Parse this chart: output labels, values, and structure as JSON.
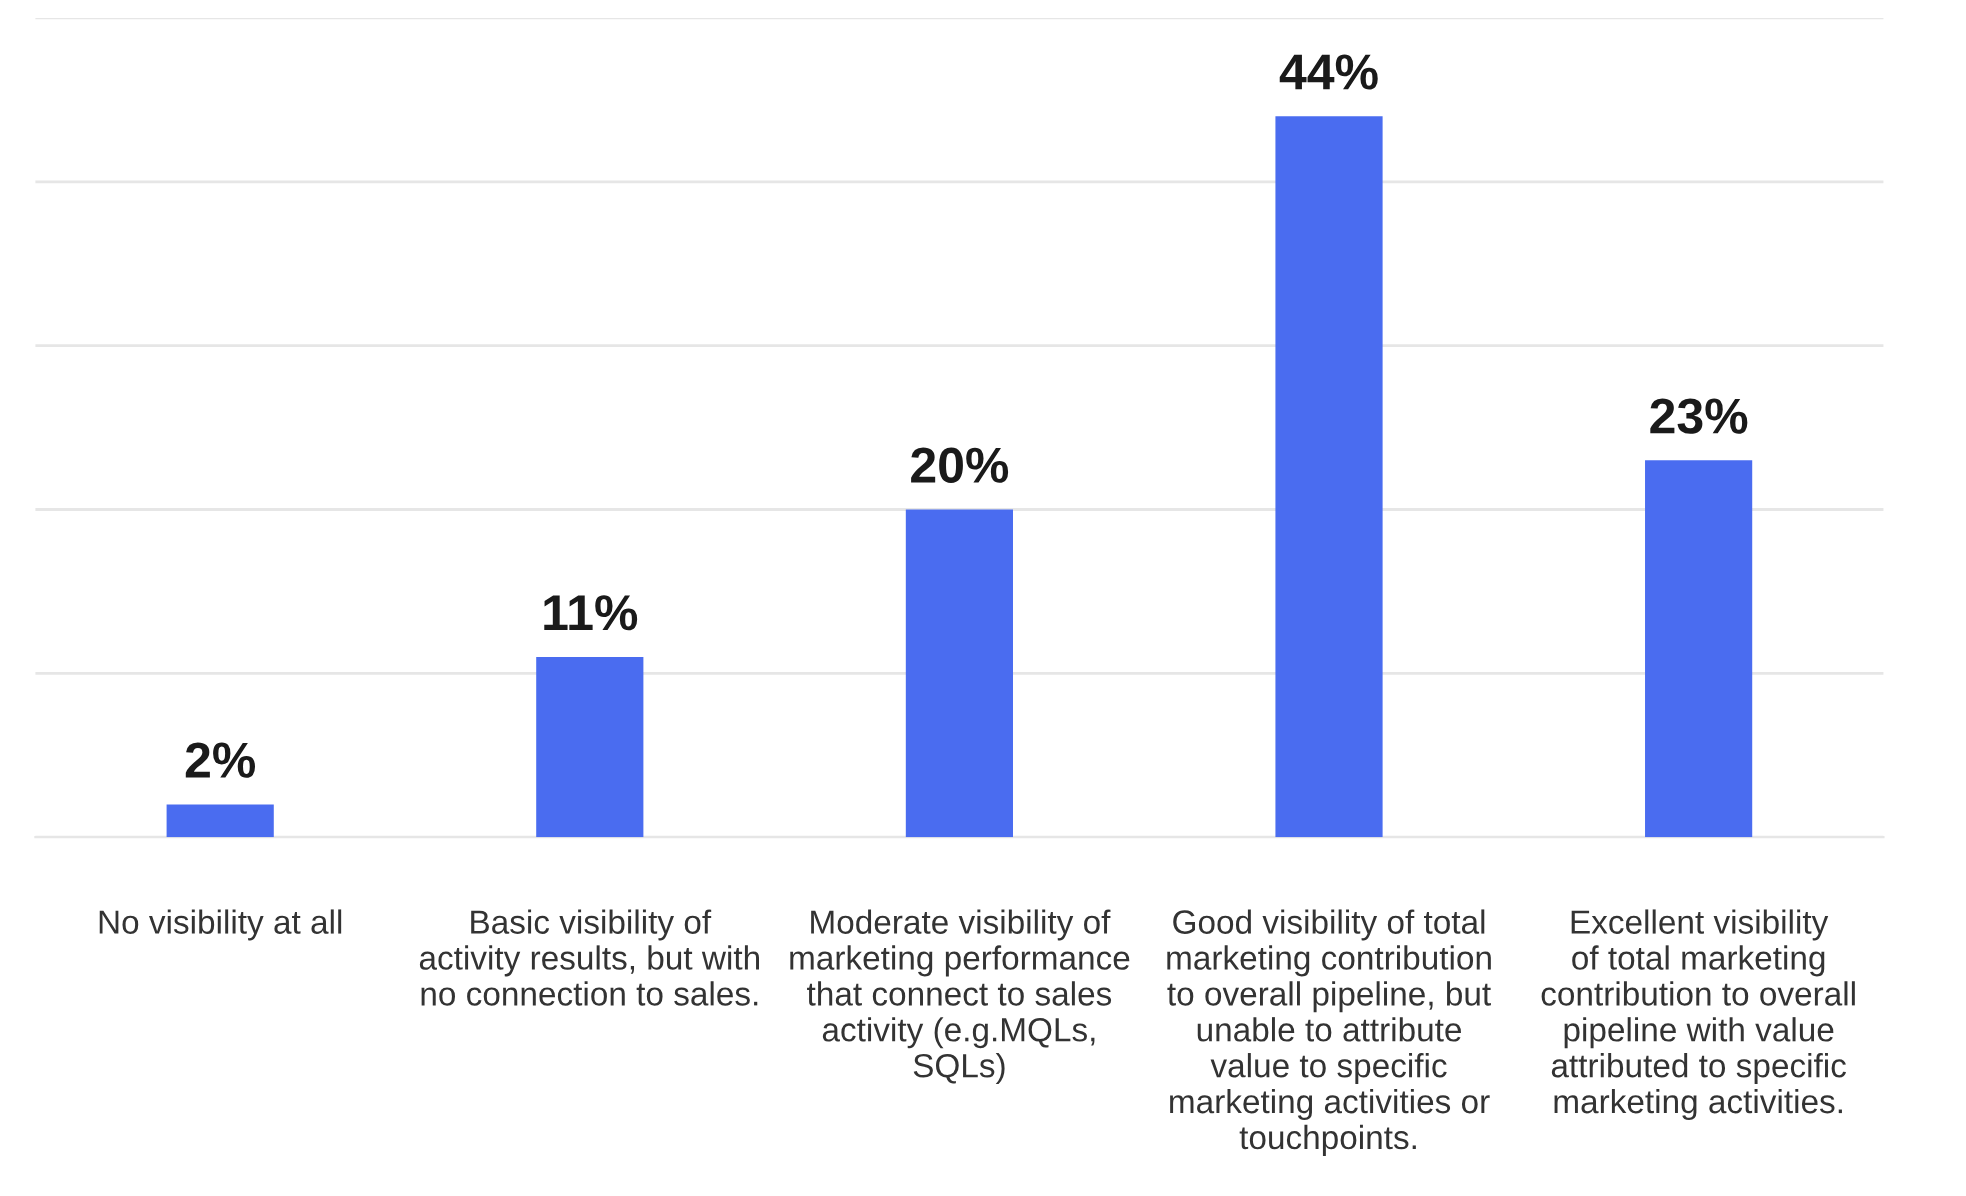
{
  "chart_data": {
    "type": "bar",
    "categories": [
      "No visibility at all",
      "Basic visibility of\nactivity results, but with\nno connection to sales.",
      "Moderate visibility of\nmarketing performance\nthat connect to sales\nactivity (e.g.MQLs,\nSQLs)",
      "Good visibility of total\nmarketing contribution\nto overall pipeline, but\nunable to attribute\nvalue to specific\nmarketing activities or\ntouchpoints.",
      "Excellent visibility\nof total marketing\ncontribution to overall\npipeline with value\nattributed to specific\nmarketing activities."
    ],
    "values": [
      2,
      11,
      20,
      44,
      23
    ],
    "value_labels": [
      "2%",
      "11%",
      "20%",
      "44%",
      "23%"
    ],
    "color": "#4a6cf0",
    "ylim": [
      0,
      50
    ],
    "yticks": [
      {
        "value": 0,
        "label": null
      },
      {
        "value": 10,
        "label": null
      },
      {
        "value": 20,
        "label": null
      },
      {
        "value": 30,
        "label": null
      },
      {
        "value": 40,
        "label": null
      },
      {
        "value": 50,
        "label": null
      }
    ],
    "grid": "y",
    "tick_labels": "x"
  }
}
